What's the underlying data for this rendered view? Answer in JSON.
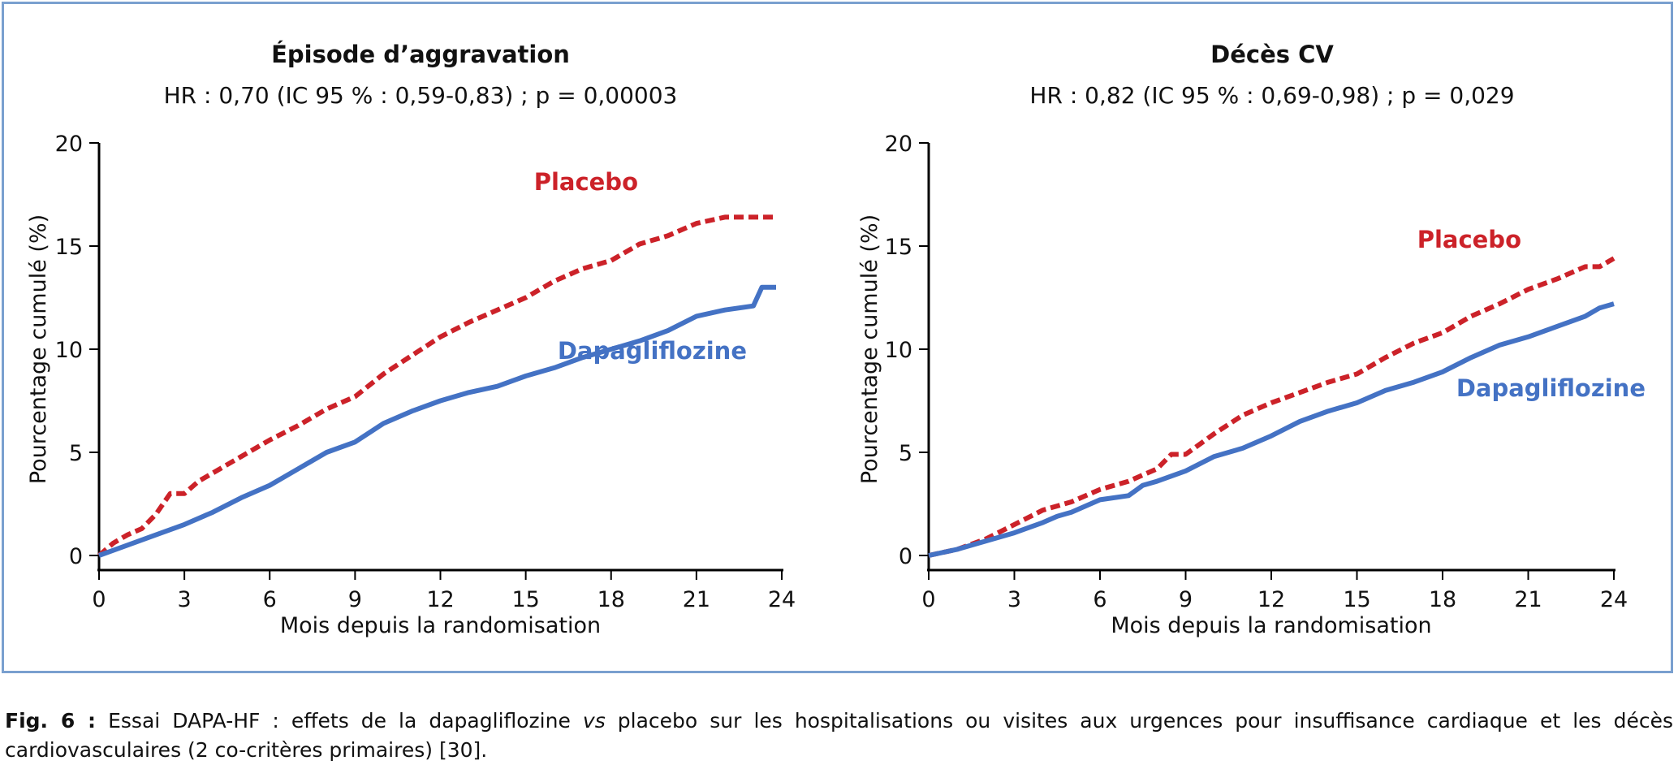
{
  "chart_data": [
    {
      "type": "line",
      "title": "Épisode d’aggravation",
      "subtitle": "HR : 0,70 (IC 95 % : 0,59-0,83) ; p = 0,00003",
      "xlabel": "Mois depuis la randomisation",
      "ylabel": "Pourcentage cumulé (%)",
      "xlim": [
        0,
        24
      ],
      "ylim": [
        0,
        20
      ],
      "xticks": [
        0,
        3,
        6,
        9,
        12,
        15,
        18,
        21,
        24
      ],
      "yticks": [
        0,
        5,
        10,
        15,
        20
      ],
      "legend": "inline labels",
      "grid": false,
      "series": [
        {
          "name": "Placebo",
          "color": "#cc2229",
          "style": "dashed",
          "x": [
            0,
            0.5,
            1,
            1.5,
            2,
            2.5,
            3,
            3.5,
            4,
            5,
            6,
            7,
            8,
            9,
            10,
            11,
            12,
            13,
            14,
            15,
            16,
            17,
            18,
            19,
            19.5,
            20,
            21,
            22,
            23,
            23.8
          ],
          "y": [
            0,
            0.6,
            1.0,
            1.3,
            2.0,
            3.0,
            3.0,
            3.6,
            4.0,
            4.8,
            5.6,
            6.3,
            7.1,
            7.7,
            8.8,
            9.7,
            10.6,
            11.3,
            11.9,
            12.5,
            13.3,
            13.9,
            14.3,
            15.1,
            15.3,
            15.5,
            16.1,
            16.4,
            16.4,
            16.4
          ]
        },
        {
          "name": "Dapagliflozine",
          "color": "#4472c4",
          "style": "solid",
          "x": [
            0,
            1,
            2,
            3,
            4,
            5,
            6,
            7,
            8,
            9,
            10,
            11,
            12,
            13,
            14,
            15,
            16,
            17,
            18,
            19,
            20,
            21,
            22,
            23,
            23.3,
            23.8
          ],
          "y": [
            0,
            0.5,
            1.0,
            1.5,
            2.1,
            2.8,
            3.4,
            4.2,
            5.0,
            5.5,
            6.4,
            7.0,
            7.5,
            7.9,
            8.2,
            8.7,
            9.1,
            9.6,
            10.0,
            10.4,
            10.9,
            11.6,
            11.9,
            12.1,
            13.0,
            13.0
          ]
        }
      ],
      "annotations": [
        "Placebo",
        "Dapagliflozine"
      ]
    },
    {
      "type": "line",
      "title": "Décès CV",
      "subtitle": "HR : 0,82 (IC 95 % : 0,69-0,98) ; p = 0,029",
      "xlabel": "Mois depuis la randomisation",
      "ylabel": "Pourcentage cumulé (%)",
      "xlim": [
        0,
        24
      ],
      "ylim": [
        0,
        20
      ],
      "xticks": [
        0,
        3,
        6,
        9,
        12,
        15,
        18,
        21,
        24
      ],
      "yticks": [
        0,
        5,
        10,
        15,
        20
      ],
      "legend": "inline labels",
      "grid": false,
      "series": [
        {
          "name": "Placebo",
          "color": "#cc2229",
          "style": "dashed",
          "x": [
            0,
            1,
            2,
            3,
            4,
            5,
            6,
            7,
            8,
            8.5,
            9,
            10,
            11,
            12,
            13,
            14,
            15,
            16,
            17,
            18,
            19,
            20,
            21,
            22,
            23,
            23.5,
            24
          ],
          "y": [
            0,
            0.3,
            0.8,
            1.5,
            2.2,
            2.6,
            3.2,
            3.6,
            4.2,
            4.9,
            4.9,
            5.9,
            6.8,
            7.4,
            7.9,
            8.4,
            8.8,
            9.6,
            10.3,
            10.8,
            11.6,
            12.2,
            12.9,
            13.4,
            14.0,
            14.0,
            14.4
          ]
        },
        {
          "name": "Dapagliflozine",
          "color": "#4472c4",
          "style": "solid",
          "x": [
            0,
            1,
            2,
            3,
            4,
            4.5,
            5,
            6,
            7,
            7.5,
            8,
            9,
            10,
            11,
            12,
            13,
            14,
            15,
            16,
            17,
            18,
            19,
            20,
            21,
            22,
            23,
            23.5,
            24
          ],
          "y": [
            0,
            0.3,
            0.7,
            1.1,
            1.6,
            1.9,
            2.1,
            2.7,
            2.9,
            3.4,
            3.6,
            4.1,
            4.8,
            5.2,
            5.8,
            6.5,
            7.0,
            7.4,
            8.0,
            8.4,
            8.9,
            9.6,
            10.2,
            10.6,
            11.1,
            11.6,
            12.0,
            12.2
          ]
        }
      ],
      "annotations": [
        "Placebo",
        "Dapagliflozine"
      ]
    }
  ],
  "caption": {
    "label": "Fig. 6 :",
    "text_before": " Essai DAPA-HF : effets de la dapagliflozine ",
    "italic": "vs",
    "text_after": " placebo sur les hospitalisations ou visites aux urgences pour insuffisance cardiaque et les décès cardiovasculaires (2 co-critères primaires) [30]."
  }
}
